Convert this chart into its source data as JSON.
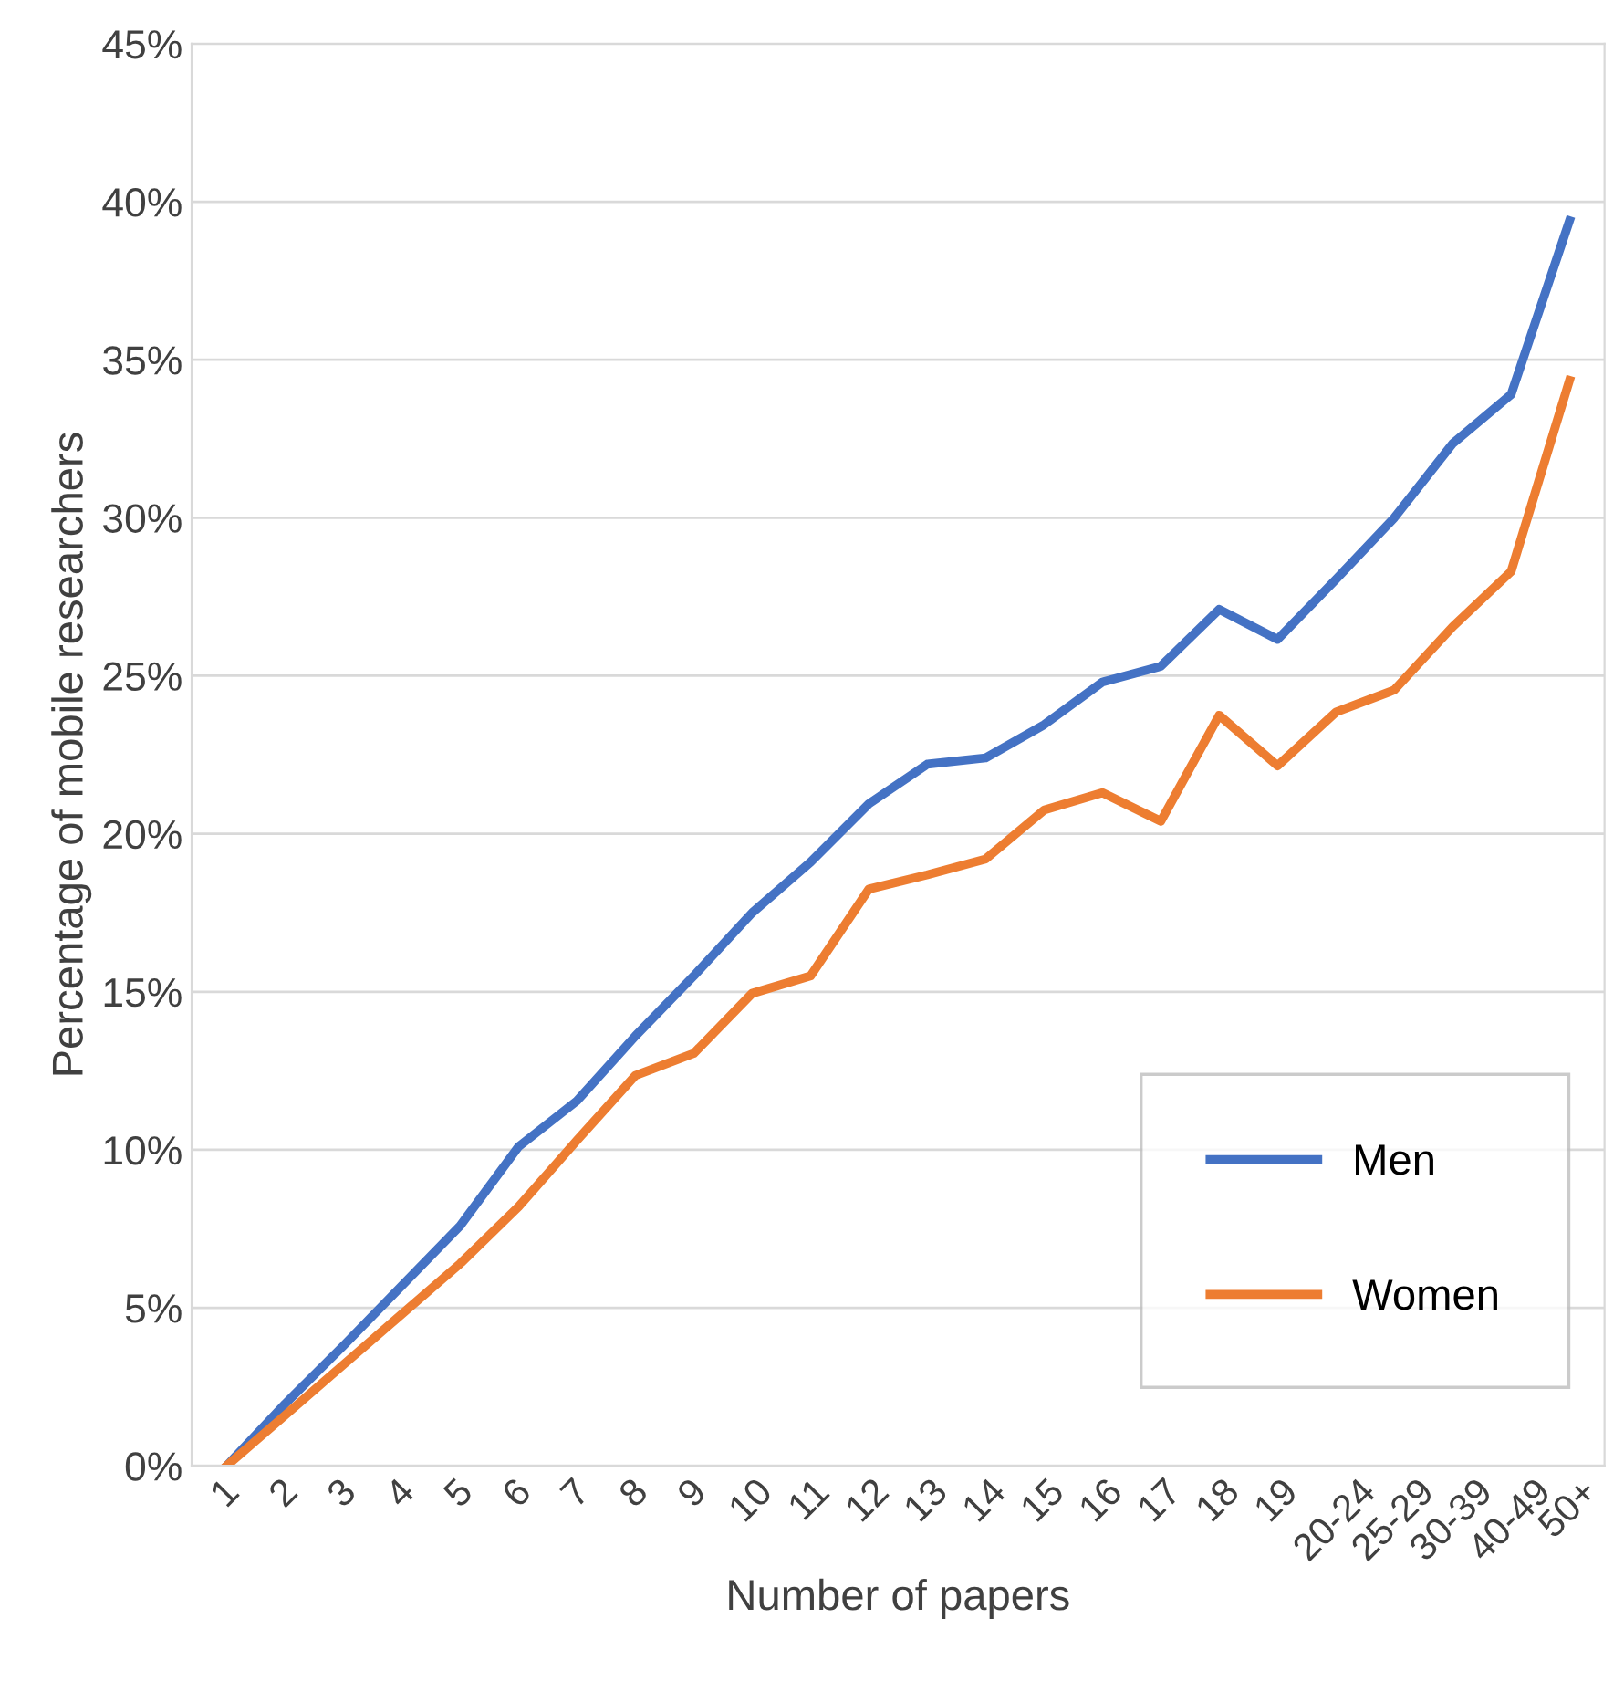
{
  "chart_data": {
    "type": "line",
    "xlabel": "Number of papers",
    "ylabel": "Percentage of mobile researchers",
    "categories": [
      "1",
      "2",
      "3",
      "4",
      "5",
      "6",
      "7",
      "8",
      "9",
      "10",
      "11",
      "12",
      "13",
      "14",
      "15",
      "16",
      "17",
      "18",
      "19",
      "20-24",
      "25-29",
      "30-39",
      "40-49",
      "50+"
    ],
    "series": [
      {
        "name": "Men",
        "color": "#4472c4",
        "values": [
          0,
          1.96,
          3.8,
          5.7,
          7.6,
          10.1,
          11.55,
          13.6,
          15.5,
          17.5,
          19.1,
          20.95,
          22.2,
          22.4,
          23.45,
          24.8,
          25.3,
          27.1,
          26.15,
          28.05,
          30.0,
          32.35,
          33.9,
          39.4
        ]
      },
      {
        "name": "Women",
        "color": "#ed7d31",
        "values": [
          0,
          1.6,
          3.2,
          4.8,
          6.4,
          8.2,
          10.3,
          12.35,
          13.05,
          14.95,
          15.5,
          18.25,
          18.7,
          19.2,
          20.75,
          21.3,
          20.4,
          23.75,
          22.15,
          23.85,
          24.55,
          26.55,
          28.3,
          34.35
        ]
      }
    ],
    "ylim": [
      0,
      45
    ],
    "yticks": [
      {
        "value": 0,
        "label": "0%"
      },
      {
        "value": 5,
        "label": "5%"
      },
      {
        "value": 10,
        "label": "10%"
      },
      {
        "value": 15,
        "label": "15%"
      },
      {
        "value": 20,
        "label": "20%"
      },
      {
        "value": 25,
        "label": "25%"
      },
      {
        "value": 30,
        "label": "30%"
      },
      {
        "value": 35,
        "label": "35%"
      },
      {
        "value": 40,
        "label": "40%"
      },
      {
        "value": 45,
        "label": "45%"
      }
    ],
    "grid": "y",
    "legend": "bottom right",
    "marker": "none",
    "line_style": "solid"
  }
}
